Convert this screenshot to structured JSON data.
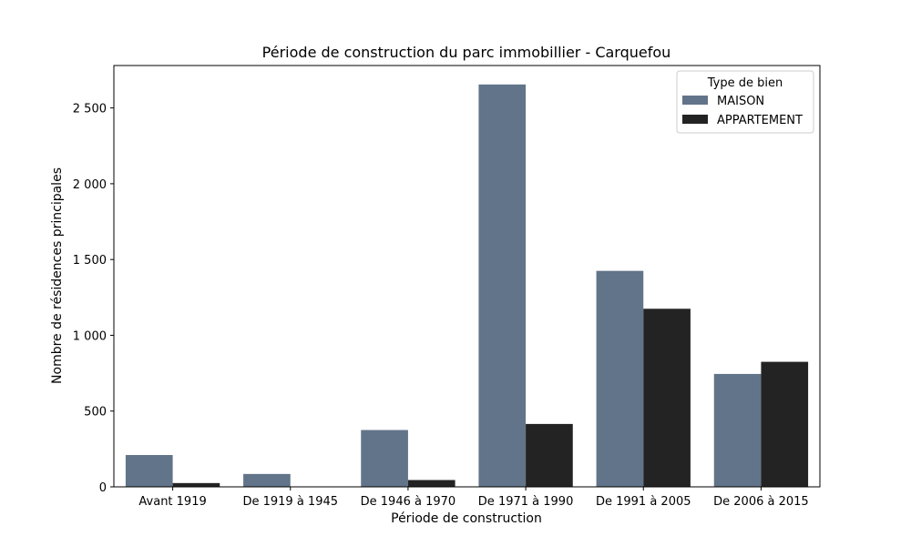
{
  "chart_data": {
    "type": "bar",
    "title": "Période de construction du parc immobillier - Carquefou",
    "xlabel": "Période de construction",
    "ylabel": "Nombre de résidences principales",
    "categories": [
      "Avant 1919",
      "De 1919 à 1945",
      "De 1946 à 1970",
      "De 1971 à 1990",
      "De 1991 à 2005",
      "De 2006 à 2015"
    ],
    "series": [
      {
        "name": "MAISON",
        "color": "#627489",
        "values": [
          210,
          85,
          375,
          2655,
          1425,
          745
        ]
      },
      {
        "name": "APPARTEMENT",
        "color": "#232323",
        "values": [
          25,
          0,
          45,
          415,
          1175,
          825
        ]
      }
    ],
    "ylim": [
      0,
      2780
    ],
    "yticks": [
      0,
      500,
      1000,
      1500,
      2000,
      2500
    ],
    "ytick_labels": [
      "0",
      "500",
      "1 000",
      "1 500",
      "2 000",
      "2 500"
    ],
    "grid": false,
    "legend": {
      "title": "Type de bien",
      "position": "top-right"
    }
  }
}
